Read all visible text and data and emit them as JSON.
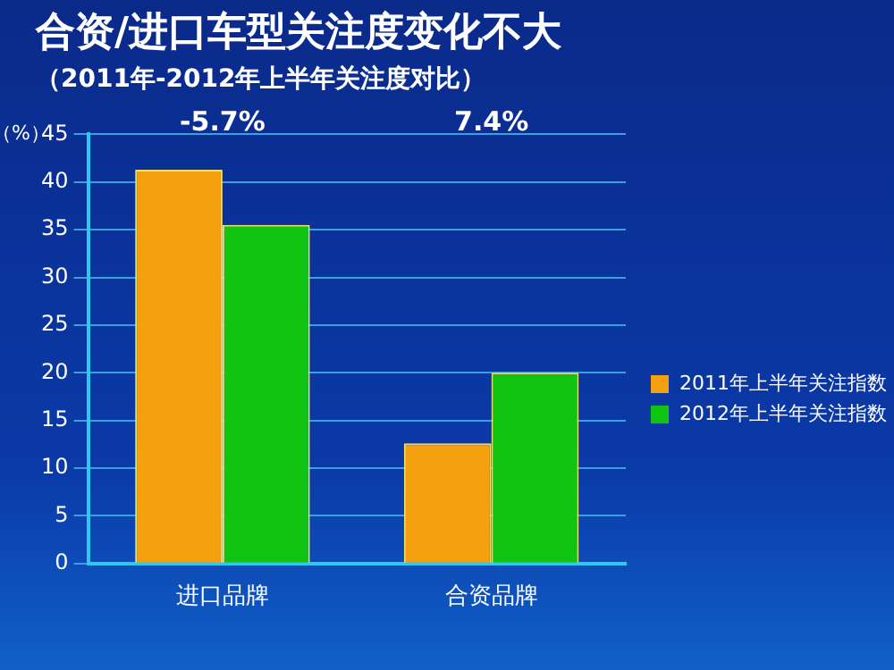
{
  "chart_data": {
    "type": "bar",
    "title": "合资/进口车型关注度变化不大",
    "subtitle": "（2011年-2012年上半年关注度对比）",
    "ylabel": "（%）",
    "categories": [
      "进口品牌",
      "合资品牌"
    ],
    "series": [
      {
        "name": "2011年上半年关注指数",
        "color": "#f5a00f",
        "values": [
          41.3,
          12.6
        ]
      },
      {
        "name": "2012年上半年关注指数",
        "color": "#12c412",
        "values": [
          35.5,
          20
        ]
      }
    ],
    "ylim": [
      0,
      45
    ],
    "yticks": [
      0,
      5,
      10,
      15,
      20,
      25,
      30,
      35,
      40,
      45
    ],
    "grid": "y",
    "legend": "right",
    "annotations": [
      "-5.7%",
      "7.4%"
    ]
  }
}
